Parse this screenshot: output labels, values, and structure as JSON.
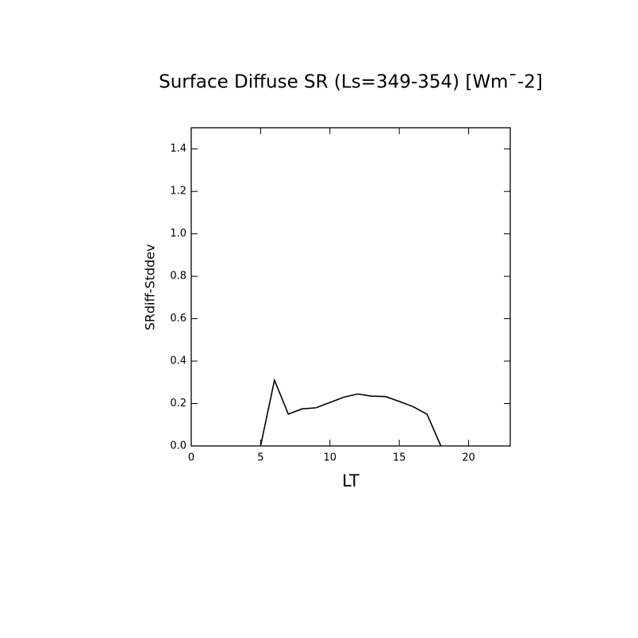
{
  "chart_data": {
    "type": "line",
    "title": "Surface Diffuse SR (Ls=349-354) [Wm¯-2]",
    "xlabel": "LT",
    "ylabel": "SRdiff-Stddev",
    "x": [
      5,
      6,
      7,
      8,
      9,
      10,
      11,
      12,
      13,
      14,
      15,
      16,
      17,
      18
    ],
    "series": [
      {
        "color": "#000000",
        "values": [
          0,
          0.31,
          0.15,
          0.175,
          0.18,
          0.205,
          0.23,
          0.245,
          0.235,
          0.233,
          0.21,
          0.185,
          0.15,
          0
        ]
      }
    ],
    "xlim": [
      0,
      23
    ],
    "xticks": [
      0,
      5,
      10,
      15,
      20
    ],
    "ylim": [
      0,
      1.5
    ],
    "yticks": [
      {
        "value": 0,
        "label": "0.0"
      },
      {
        "value": 0.2,
        "label": "0.2"
      },
      {
        "value": 0.4,
        "label": "0.4"
      },
      {
        "value": 0.6,
        "label": "0.6"
      },
      {
        "value": 0.8,
        "label": "0.8"
      },
      {
        "value": 1.0,
        "label": "1.0"
      },
      {
        "value": 1.2,
        "label": "1.2"
      },
      {
        "value": 1.4,
        "label": "1.4"
      }
    ]
  }
}
